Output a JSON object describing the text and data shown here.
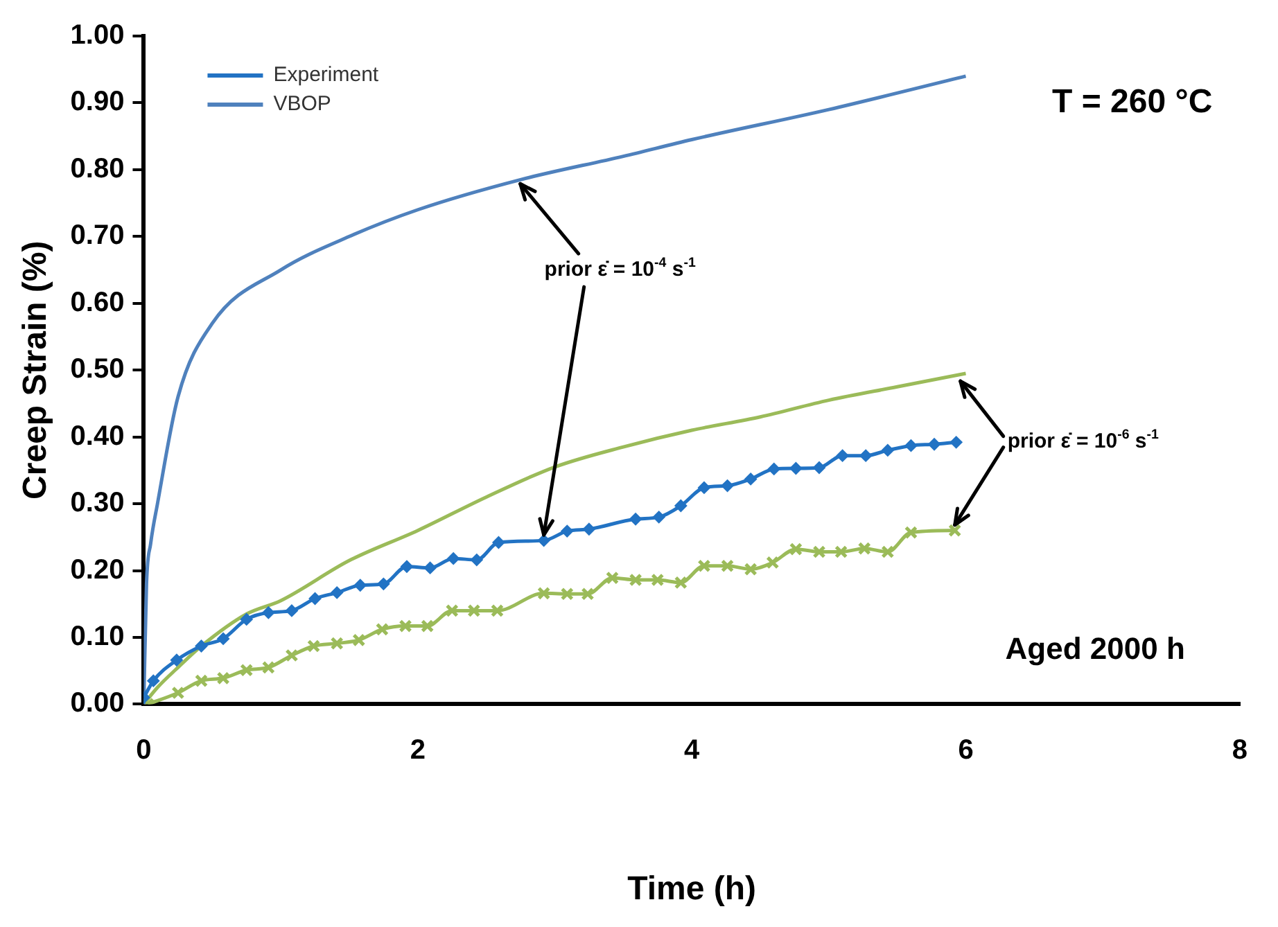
{
  "chart_data": {
    "type": "line",
    "xlabel": "Time (h)",
    "ylabel": "Creep Strain (%)",
    "xlim": [
      0,
      8
    ],
    "xticks": [
      0,
      2,
      4,
      6,
      8
    ],
    "ylim": [
      0,
      1
    ],
    "yticks": [
      {
        "value": 0,
        "label": "0.00"
      },
      {
        "value": 0.1,
        "label": "0.10"
      },
      {
        "value": 0.2,
        "label": "0.20"
      },
      {
        "value": 0.3,
        "label": "0.30"
      },
      {
        "value": 0.4,
        "label": "0.40"
      },
      {
        "value": 0.5,
        "label": "0.50"
      },
      {
        "value": 0.6,
        "label": "0.60"
      },
      {
        "value": 0.7,
        "label": "0.70"
      },
      {
        "value": 0.8,
        "label": "0.80"
      },
      {
        "value": 0.9,
        "label": "0.90"
      },
      {
        "value": 1,
        "label": "1.00"
      }
    ],
    "grid": false,
    "legend": "top left",
    "line_style": "solid",
    "series": [
      {
        "name": "Experiment",
        "color": "#2273c4",
        "marker": "diamond",
        "x": [
          0,
          0.07,
          0.24,
          0.42,
          0.58,
          0.75,
          0.91,
          1.08,
          1.25,
          1.41,
          1.58,
          1.75,
          1.92,
          2.09,
          2.26,
          2.43,
          2.59,
          2.92,
          3.09,
          3.25,
          3.59,
          3.76,
          3.92,
          4.09,
          4.26,
          4.43,
          4.6,
          4.76,
          4.93,
          5.1,
          5.27,
          5.43,
          5.6,
          5.77,
          5.93
        ],
        "values": [
          0.01,
          0.035,
          0.066,
          0.087,
          0.098,
          0.127,
          0.137,
          0.14,
          0.158,
          0.167,
          0.178,
          0.18,
          0.206,
          0.204,
          0.218,
          0.216,
          0.242,
          0.245,
          0.259,
          0.262,
          0.277,
          0.28,
          0.297,
          0.324,
          0.327,
          0.337,
          0.352,
          0.353,
          0.354,
          0.372,
          0.372,
          0.38,
          0.387,
          0.389,
          0.392
        ]
      },
      {
        "name": "VBOP",
        "color": "#4f81bd",
        "marker": "none",
        "x": [
          0,
          0.02,
          0.05,
          0.1,
          0.25,
          0.5,
          1,
          1.5,
          2,
          2.75,
          3.5,
          4,
          5,
          6
        ],
        "values": [
          0,
          0.18,
          0.24,
          0.3,
          0.46,
          0.57,
          0.65,
          0.7,
          0.74,
          0.785,
          0.82,
          0.845,
          0.89,
          0.94
        ]
      },
      {
        "color": "#9bbb59",
        "marker": "cross",
        "x": [
          0.03,
          0.25,
          0.42,
          0.58,
          0.75,
          0.91,
          1.08,
          1.24,
          1.41,
          1.57,
          1.74,
          1.91,
          2.07,
          2.25,
          2.41,
          2.58,
          2.92,
          3.09,
          3.24,
          3.42,
          3.59,
          3.75,
          3.92,
          4.09,
          4.26,
          4.43,
          4.59,
          4.76,
          4.93,
          5.09,
          5.26,
          5.43,
          5.6,
          5.92
        ],
        "values": [
          0.0,
          0.017,
          0.035,
          0.039,
          0.051,
          0.055,
          0.073,
          0.087,
          0.091,
          0.096,
          0.112,
          0.117,
          0.117,
          0.14,
          0.14,
          0.14,
          0.166,
          0.165,
          0.165,
          0.189,
          0.186,
          0.186,
          0.182,
          0.207,
          0.207,
          0.202,
          0.212,
          0.232,
          0.228,
          0.228,
          0.233,
          0.228,
          0.257,
          0.26
        ]
      },
      {
        "color": "#9bbb59",
        "marker": "none",
        "x": [
          0,
          0.1,
          0.25,
          0.42,
          0.75,
          1,
          1.5,
          2,
          2.5,
          3,
          3.5,
          4,
          4.5,
          5,
          5.5,
          6
        ],
        "values": [
          0,
          0.025,
          0.055,
          0.087,
          0.135,
          0.155,
          0.215,
          0.26,
          0.31,
          0.355,
          0.385,
          0.41,
          0.43,
          0.455,
          0.475,
          0.495
        ]
      }
    ],
    "annotations": [
      "T = 260 °C",
      "Aged 2000 h",
      {
        "text": "prior ε̇ = 10$^{-4}$ s$^{-1}$",
        "x": 2.92,
        "y": 0.245
      },
      {
        "text": "prior ε̇ = 10$^{-6}$ s$^{-1}$",
        "x": 5.92,
        "y": 0.26
      }
    ]
  }
}
